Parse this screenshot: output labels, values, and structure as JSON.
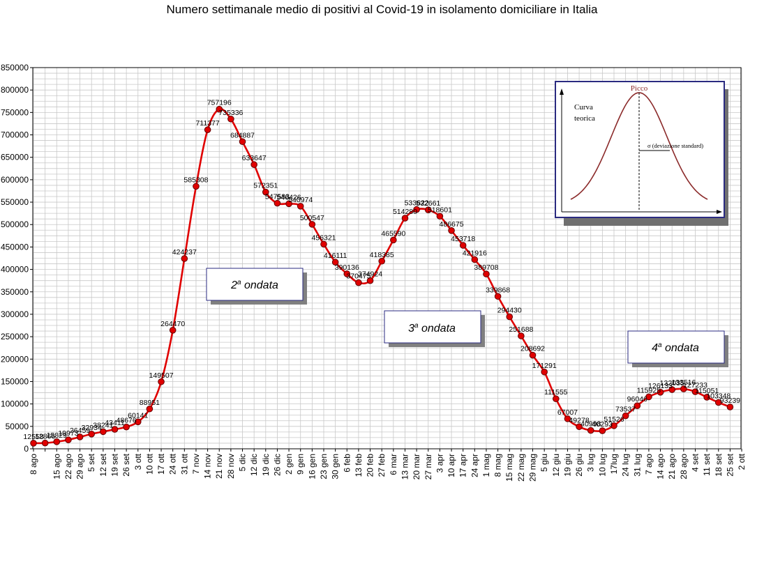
{
  "chart_data": {
    "type": "line",
    "title": "Numero settimanale medio di positivi al Covid-19  in isolamento domiciliare in Italia",
    "xlabel": "",
    "ylabel": "",
    "ylim": [
      0,
      850000
    ],
    "y_ticks": [
      "0",
      "50000",
      "100000",
      "150000",
      "200000",
      "250000",
      "300000",
      "350000",
      "400000",
      "450000",
      "500000",
      "550000",
      "600000",
      "650000",
      "700000",
      "750000",
      "800000",
      "850000"
    ],
    "grid": true,
    "series": [
      {
        "color": "#e00000",
        "marker_color": "#e00000",
        "points": [
          {
            "x": "8 ago",
            "y": 12558,
            "label": "12558"
          },
          {
            "x": "",
            "y": 12866,
            "label": "12866"
          },
          {
            "x": "15 ago",
            "y": 15829,
            "label": "15829"
          },
          {
            "x": "22 ago",
            "y": 19973,
            "label": "19973"
          },
          {
            "x": "29 ago",
            "y": 26459,
            "label": "26459"
          },
          {
            "x": "5 set",
            "y": 32934,
            "label": "32934"
          },
          {
            "x": "12 set",
            "y": 38241,
            "label": "38241"
          },
          {
            "x": "19 set",
            "y": 43411,
            "label": "43411"
          },
          {
            "x": "26 set",
            "y": 48676,
            "label": "48676"
          },
          {
            "x": "3 ott",
            "y": 60141,
            "label": "60141"
          },
          {
            "x": "10 ott",
            "y": 88951,
            "label": "88951"
          },
          {
            "x": "17 ott",
            "y": 149507,
            "label": "149507"
          },
          {
            "x": "24 ott",
            "y": 264470,
            "label": "264470"
          },
          {
            "x": "31 ott",
            "y": 424237,
            "label": "424237"
          },
          {
            "x": "7 nov",
            "y": 585308,
            "label": "585308"
          },
          {
            "x": "14 nov",
            "y": 711377,
            "label": "711377"
          },
          {
            "x": "21 nov",
            "y": 757196,
            "label": "757196"
          },
          {
            "x": "28 nov",
            "y": 735336,
            "label": "735336"
          },
          {
            "x": "5 dic",
            "y": 684887,
            "label": "684887"
          },
          {
            "x": "12 dic",
            "y": 633647,
            "label": "633647"
          },
          {
            "x": "19 dic",
            "y": 572351,
            "label": "572351"
          },
          {
            "x": "26 dic",
            "y": 547583,
            "label": "547583"
          },
          {
            "x": "2 gen",
            "y": 546426,
            "label": "546426"
          },
          {
            "x": "9 gen",
            "y": 540974,
            "label": "540974"
          },
          {
            "x": "16 gen",
            "y": 500547,
            "label": "500547"
          },
          {
            "x": "23 gen",
            "y": 456321,
            "label": "456321"
          },
          {
            "x": "30 gen",
            "y": 416111,
            "label": "416111"
          },
          {
            "x": "6 feb",
            "y": 390136,
            "label": "390136"
          },
          {
            "x": "13 feb",
            "y": 370475,
            "label": "370475"
          },
          {
            "x": "20 feb",
            "y": 374924,
            "label": "374924"
          },
          {
            "x": "27 feb",
            "y": 418385,
            "label": "418385"
          },
          {
            "x": "6 mar",
            "y": 465590,
            "label": "465590"
          },
          {
            "x": "13 mar",
            "y": 514280,
            "label": "514280"
          },
          {
            "x": "20 mar",
            "y": 533622,
            "label": "533622"
          },
          {
            "x": "27 mar",
            "y": 532661,
            "label": "532661"
          },
          {
            "x": "3 apr",
            "y": 518601,
            "label": "518601"
          },
          {
            "x": "10 apr",
            "y": 486675,
            "label": "486675"
          },
          {
            "x": "17 apr",
            "y": 453718,
            "label": "453718"
          },
          {
            "x": "24 apr",
            "y": 421916,
            "label": "421916"
          },
          {
            "x": "1 mag",
            "y": 389708,
            "label": "389708"
          },
          {
            "x": "8 mag",
            "y": 339868,
            "label": "339868"
          },
          {
            "x": "15 mag",
            "y": 294430,
            "label": "294430"
          },
          {
            "x": "22 mag",
            "y": 251688,
            "label": "251688"
          },
          {
            "x": "29 mag",
            "y": 208692,
            "label": "208692"
          },
          {
            "x": "5 giu",
            "y": 171291,
            "label": "171291"
          },
          {
            "x": "12 giu",
            "y": 111555,
            "label": "111555"
          },
          {
            "x": "19 giu",
            "y": 67007,
            "label": "67007"
          },
          {
            "x": "26 giu",
            "y": 49278,
            "label": "49278"
          },
          {
            "x": "3 lug",
            "y": 40998,
            "label": "40998"
          },
          {
            "x": "10 lug",
            "y": 40293,
            "label": "40293"
          },
          {
            "x": "17lug",
            "y": 51526,
            "label": "51526"
          },
          {
            "x": "24 lug",
            "y": 73537,
            "label": "73537"
          },
          {
            "x": "31 lug",
            "y": 96046,
            "label": "96046"
          },
          {
            "x": "7 ago",
            "y": 115925,
            "label": "115925"
          },
          {
            "x": "14 ago",
            "y": 126133,
            "label": "126133"
          },
          {
            "x": "21 ago",
            "y": 132035,
            "label": "132035"
          },
          {
            "x": "28 ago",
            "y": 133516,
            "label": "133516"
          },
          {
            "x": "4 set",
            "y": 127233,
            "label": "127233"
          },
          {
            "x": "11 set",
            "y": 115051,
            "label": "115051"
          },
          {
            "x": "18 set",
            "y": 103348,
            "label": "103348"
          },
          {
            "x": "25 set",
            "y": 93239,
            "label": "93239"
          },
          {
            "x": "2 ott",
            "y": null,
            "label": ""
          }
        ]
      }
    ],
    "annotations": [
      {
        "sup": "a",
        "base": "2",
        "text": " ondata"
      },
      {
        "sup": "a",
        "base": "3",
        "text": " ondata"
      },
      {
        "sup": "a",
        "base": "4",
        "text": " ondata"
      }
    ],
    "inset": {
      "title": "Picco",
      "label_line1": "Curva",
      "label_line2": "teorica",
      "sigma_label": "σ   (deviazione standard)"
    }
  }
}
